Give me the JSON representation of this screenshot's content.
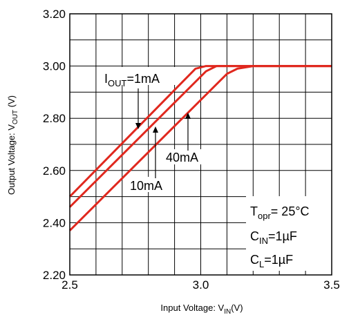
{
  "chart_data": {
    "type": "line",
    "xlabel": {
      "main": "Input Voltage: V",
      "sub": "IN",
      "unit": "(V)"
    },
    "ylabel": {
      "main": "Output Voltage: V",
      "sub": "OUT",
      "unit": " (V)"
    },
    "xlim": [
      2.5,
      3.5
    ],
    "ylim": [
      2.2,
      3.2
    ],
    "grid": true,
    "x_ticks": [
      "2.5",
      "3.0",
      "3.5"
    ],
    "y_ticks": [
      "2.20",
      "2.40",
      "2.60",
      "2.80",
      "3.00",
      "3.20"
    ],
    "line_color": "#e0281e",
    "series": [
      {
        "name": "1mA",
        "x": [
          2.5,
          2.98,
          3.02,
          3.5
        ],
        "y": [
          2.5,
          2.99,
          3.0,
          3.0
        ]
      },
      {
        "name": "10mA",
        "x": [
          2.5,
          3.02,
          3.06,
          3.5
        ],
        "y": [
          2.46,
          2.98,
          3.0,
          3.0
        ]
      },
      {
        "name": "40mA",
        "x": [
          2.5,
          3.1,
          3.14,
          3.2,
          3.5
        ],
        "y": [
          2.37,
          2.97,
          2.99,
          3.0,
          3.0
        ]
      }
    ],
    "annotations": {
      "iout": {
        "prefix": "I",
        "sub": "OUT",
        "value": "=1mA"
      },
      "i10": "10mA",
      "i40": "40mA"
    },
    "conditions": {
      "topr": {
        "main": "T",
        "sub": "opr",
        "value": "= 25°C"
      },
      "cin": {
        "main": "C",
        "sub": "IN",
        "value": "=1µF"
      },
      "cl": {
        "main": "C",
        "sub": "L",
        "value": "=1µF"
      }
    }
  }
}
